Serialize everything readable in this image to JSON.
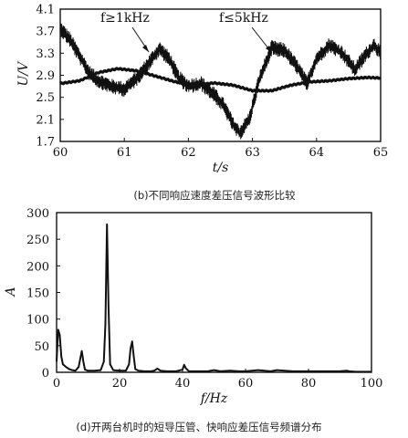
{
  "chart_data": [
    {
      "type": "line",
      "caption": "(b)不同响应速度差压信号波形比较",
      "xlabel": "t/s",
      "ylabel": "U/V",
      "xlim": [
        60,
        65
      ],
      "ylim": [
        1.7,
        4.1
      ],
      "xticks": [
        "60",
        "61",
        "62",
        "63",
        "64",
        "65"
      ],
      "yticks": [
        "1.7",
        "2.1",
        "2.5",
        "2.9",
        "3.3",
        "3.7",
        "4.1"
      ],
      "annotations": [
        {
          "text": "f≥1kHz",
          "points_to_series": "fast"
        },
        {
          "text": "f≤5kHz",
          "points_to_series": "slow"
        }
      ],
      "series": [
        {
          "key": "fast",
          "x": [
            60.0,
            60.15,
            60.3,
            60.45,
            60.6,
            60.8,
            61.0,
            61.2,
            61.4,
            61.55,
            61.7,
            61.85,
            62.0,
            62.2,
            62.4,
            62.55,
            62.7,
            62.8,
            62.95,
            63.1,
            63.3,
            63.5,
            63.7,
            63.85,
            64.0,
            64.2,
            64.4,
            64.6,
            64.75,
            64.9,
            65.0
          ],
          "y": [
            3.75,
            3.55,
            3.25,
            2.95,
            2.8,
            2.7,
            2.65,
            2.85,
            3.15,
            3.38,
            3.2,
            2.85,
            2.7,
            2.75,
            2.55,
            2.35,
            2.0,
            1.85,
            2.1,
            2.8,
            3.4,
            3.35,
            3.05,
            2.75,
            3.2,
            3.45,
            3.3,
            3.0,
            3.25,
            3.45,
            3.3
          ]
        },
        {
          "key": "slow",
          "x": [
            60.0,
            60.3,
            60.6,
            60.9,
            61.2,
            61.5,
            61.8,
            62.1,
            62.4,
            62.7,
            63.0,
            63.3,
            63.6,
            63.9,
            64.2,
            64.5,
            64.8,
            65.0
          ],
          "y": [
            2.75,
            2.8,
            2.95,
            3.02,
            2.98,
            2.88,
            2.78,
            2.72,
            2.76,
            2.72,
            2.62,
            2.62,
            2.72,
            2.78,
            2.8,
            2.84,
            2.86,
            2.85
          ]
        }
      ]
    },
    {
      "type": "line",
      "caption": "(d)开两台机时的短导压管、快响应差压信号频谱分布",
      "xlabel": "f/Hz",
      "ylabel": "A",
      "xlim": [
        0,
        100
      ],
      "ylim": [
        0,
        300
      ],
      "xticks": [
        "0",
        "20",
        "40",
        "60",
        "80",
        "100"
      ],
      "yticks": [
        "0",
        "50",
        "100",
        "150",
        "200",
        "250",
        "300"
      ],
      "series": [
        {
          "key": "spectrum",
          "x": [
            0,
            0.5,
            1,
            1.5,
            2,
            3,
            4,
            5,
            6,
            7,
            7.5,
            8,
            8.5,
            9,
            10,
            12,
            14,
            15,
            15.5,
            16,
            16.5,
            17,
            18,
            20,
            22,
            23,
            23.5,
            24,
            24.5,
            25,
            26,
            28,
            30,
            31,
            32,
            33,
            35,
            38,
            40,
            40.5,
            41,
            42,
            45,
            48,
            50,
            52,
            55,
            58,
            60,
            64,
            68,
            70,
            75,
            80,
            85,
            90,
            92,
            93,
            95,
            100
          ],
          "y": [
            20,
            80,
            70,
            30,
            15,
            10,
            6,
            4,
            3,
            10,
            25,
            40,
            20,
            5,
            3,
            3,
            4,
            20,
            90,
            278,
            120,
            15,
            4,
            3,
            3,
            15,
            45,
            58,
            30,
            6,
            3,
            2,
            2,
            3,
            7,
            3,
            2,
            2,
            5,
            14,
            8,
            2,
            2,
            2,
            4,
            2,
            3,
            2,
            2,
            4,
            2,
            4,
            2,
            2,
            2,
            2,
            3,
            2,
            1,
            1
          ]
        }
      ]
    }
  ]
}
